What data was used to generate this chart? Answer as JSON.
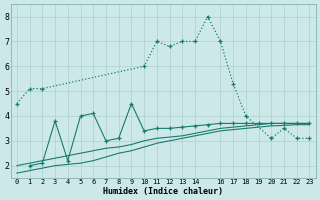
{
  "xlabel": "Humidex (Indice chaleur)",
  "background_color": "#cce8e8",
  "grid_color": "#aecfcf",
  "line_color": "#1a7a6e",
  "xlim": [
    -0.5,
    23.5
  ],
  "ylim": [
    1.5,
    8.5
  ],
  "xticks": [
    0,
    1,
    2,
    3,
    4,
    5,
    6,
    7,
    8,
    9,
    10,
    11,
    12,
    13,
    14,
    16,
    17,
    18,
    19,
    20,
    21,
    22,
    23
  ],
  "yticks": [
    2,
    3,
    4,
    5,
    6,
    7,
    8
  ],
  "line1_x": [
    0,
    1,
    2,
    10,
    11,
    12,
    13,
    14,
    15,
    16,
    17,
    18,
    20,
    21,
    22,
    23
  ],
  "line1_y": [
    4.5,
    5.1,
    5.1,
    6.0,
    7.0,
    6.8,
    7.0,
    7.0,
    8.0,
    7.0,
    5.3,
    4.0,
    3.1,
    3.5,
    3.1,
    3.1
  ],
  "line2_x": [
    0,
    1,
    2,
    3,
    4,
    5,
    6,
    7,
    8,
    9,
    10,
    11,
    12,
    13,
    14,
    15,
    16,
    17,
    18,
    19,
    20,
    21,
    22,
    23
  ],
  "line2_y": [
    2.0,
    2.1,
    2.2,
    2.3,
    2.4,
    2.5,
    2.6,
    2.7,
    2.75,
    2.85,
    3.0,
    3.1,
    3.15,
    3.2,
    3.3,
    3.4,
    3.5,
    3.55,
    3.6,
    3.65,
    3.7,
    3.7,
    3.7,
    3.7
  ],
  "line3_x": [
    1,
    2,
    3,
    4,
    5,
    6,
    7,
    8,
    9,
    10,
    11,
    12,
    13,
    14,
    15,
    16,
    17,
    18,
    19,
    20,
    21,
    22,
    23
  ],
  "line3_y": [
    2.0,
    2.1,
    3.8,
    2.2,
    4.0,
    4.1,
    3.0,
    3.1,
    4.5,
    3.4,
    3.5,
    3.5,
    3.55,
    3.6,
    3.65,
    3.7,
    3.7,
    3.7,
    3.7,
    3.7,
    3.7,
    3.7,
    3.7
  ],
  "line4_x": [
    0,
    1,
    2,
    3,
    4,
    5,
    6,
    7,
    8,
    9,
    10,
    11,
    12,
    13,
    14,
    15,
    16,
    17,
    18,
    19,
    20,
    21,
    22,
    23
  ],
  "line4_y": [
    1.7,
    1.8,
    1.9,
    2.0,
    2.05,
    2.1,
    2.2,
    2.35,
    2.5,
    2.6,
    2.75,
    2.9,
    3.0,
    3.1,
    3.2,
    3.3,
    3.4,
    3.45,
    3.5,
    3.55,
    3.6,
    3.62,
    3.65,
    3.65
  ]
}
